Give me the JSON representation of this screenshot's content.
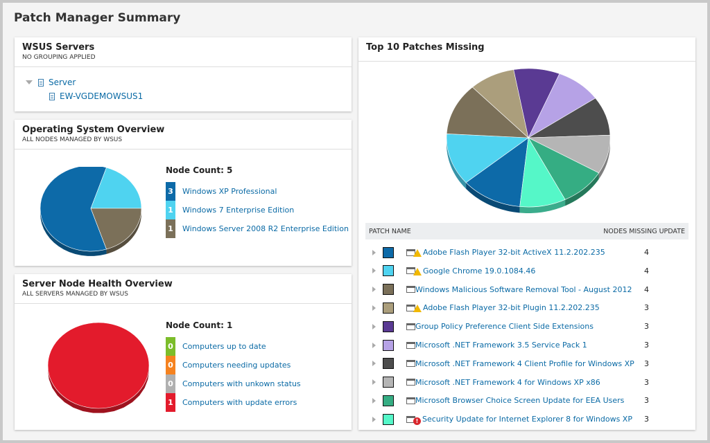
{
  "page_title": "Patch Manager Summary",
  "wsus": {
    "title": "WSUS Servers",
    "subtitle": "NO GROUPING APPLIED",
    "group": "Server",
    "server": "EW-VGDEMOWSUS1"
  },
  "os": {
    "title": "Operating System Overview",
    "subtitle": "ALL NODES MANAGED BY WSUS",
    "node_count": "Node Count: 5",
    "items": [
      {
        "count": "3",
        "label": "Windows XP Professional",
        "color": "#0d6aa8"
      },
      {
        "count": "1",
        "label": "Windows 7 Enterprise Edition",
        "color": "#4fd3f0"
      },
      {
        "count": "1",
        "label": "Windows Server 2008 R2 Enterprise Edition",
        "color": "#7b7059"
      }
    ]
  },
  "health": {
    "title": "Server Node Health Overview",
    "subtitle": "ALL SERVERS MANAGED BY WSUS",
    "node_count": "Node Count: 1",
    "items": [
      {
        "count": "0",
        "label": "Computers up to date",
        "color": "#7cbd2a"
      },
      {
        "count": "0",
        "label": "Computers needing updates",
        "color": "#f5821f"
      },
      {
        "count": "0",
        "label": "Computers with unkown status",
        "color": "#b0b0b0"
      },
      {
        "count": "1",
        "label": "Computers with update errors",
        "color": "#e31b2c"
      }
    ]
  },
  "patches": {
    "title": "Top 10 Patches Missing",
    "col_name": "PATCH NAME",
    "col_count": "NODES MISSING UPDATE",
    "rows": [
      {
        "name": "Adobe Flash Player 32-bit ActiveX 11.2.202.235",
        "count": "4",
        "color": "#0d6aa8",
        "status": "warning"
      },
      {
        "name": "Google Chrome 19.0.1084.46",
        "count": "4",
        "color": "#4fd3f0",
        "status": "warning"
      },
      {
        "name": "Windows Malicious Software Removal Tool - August 2012",
        "count": "4",
        "color": "#7b7059",
        "status": ""
      },
      {
        "name": "Adobe Flash Player 32-bit Plugin 11.2.202.235",
        "count": "3",
        "color": "#ab9e7c",
        "status": "warning"
      },
      {
        "name": "Group Policy Preference Client Side Extensions",
        "count": "3",
        "color": "#5a3a93",
        "status": ""
      },
      {
        "name": "Microsoft .NET Framework 3.5 Service Pack 1",
        "count": "3",
        "color": "#b6a2e6",
        "status": ""
      },
      {
        "name": "Microsoft .NET Framework 4 Client Profile for Windows XP",
        "count": "3",
        "color": "#4d4d4d",
        "status": ""
      },
      {
        "name": "Microsoft .NET Framework 4 for Windows XP x86",
        "count": "3",
        "color": "#b5b5b5",
        "status": ""
      },
      {
        "name": "Microsoft Browser Choice Screen Update for EEA Users",
        "count": "3",
        "color": "#35ad83",
        "status": ""
      },
      {
        "name": "Security Update for Internet Explorer 8 for Windows XP",
        "count": "3",
        "color": "#55f7c8",
        "status": "error"
      }
    ]
  }
}
